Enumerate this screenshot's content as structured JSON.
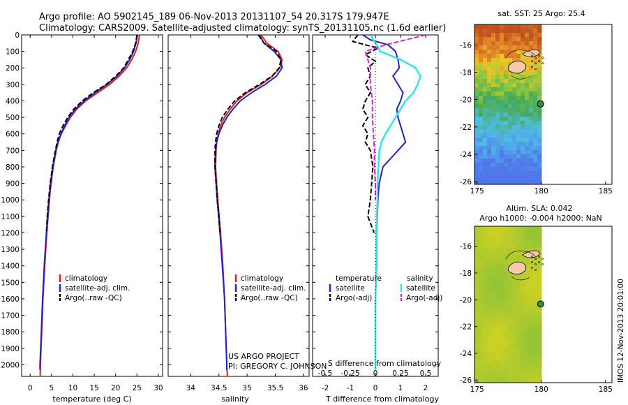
{
  "header": {
    "line1": "Argo profile: AO 5902145_189 06-Nov-2013 20131107_54 20.317S 179.947E",
    "line2": "Climatology: CARS2009. Satellite-adjusted climatology: synTS_20131105.nc (1.6d earlier)"
  },
  "credit": {
    "line1": "US ARGO PROJECT",
    "line2": "PI: GREGORY C. JOHNSON"
  },
  "watermark": "IMOS 12-Nov-2013 20:01:00",
  "colors": {
    "climatology": "#e0201c",
    "satellite": "#1f22c8",
    "argo": "#000000",
    "sal_satellite": "#2ee6e6",
    "sal_argo": "#e020d0",
    "land": "#f5c8a8"
  },
  "chart_data": [
    {
      "type": "line",
      "name": "temperature-profile",
      "xlabel": "temperature (deg C)",
      "ylabel": "",
      "xlim": [
        -2,
        31
      ],
      "ylim": [
        2070,
        0
      ],
      "xticks": [
        "0",
        "5",
        "10",
        "15",
        "20",
        "25",
        "30"
      ],
      "xtick_values": [
        0,
        5,
        10,
        15,
        20,
        25,
        30
      ],
      "yticks": [
        "0",
        "100",
        "200",
        "300",
        "400",
        "500",
        "600",
        "700",
        "800",
        "900",
        "1000",
        "1100",
        "1200",
        "1300",
        "1400",
        "1500",
        "1600",
        "1700",
        "1800",
        "1900",
        "2000"
      ],
      "ytick_values": [
        0,
        100,
        200,
        300,
        400,
        500,
        600,
        700,
        800,
        900,
        1000,
        1100,
        1200,
        1300,
        1400,
        1500,
        1600,
        1700,
        1800,
        1900,
        2000
      ],
      "legend": [
        "climatology",
        "satellite-adj. clim.",
        "Argo(..raw -QC)"
      ],
      "series": [
        {
          "name": "climatology",
          "depth": [
            0,
            50,
            100,
            150,
            200,
            250,
            300,
            350,
            400,
            450,
            500,
            550,
            600,
            650,
            700,
            800,
            900,
            1000,
            1200,
            1400,
            1600,
            1800,
            2000,
            2070
          ],
          "values": [
            25.6,
            25.3,
            24.7,
            23.8,
            22.6,
            20.8,
            18.6,
            15.8,
            13.0,
            10.9,
            9.4,
            8.3,
            7.3,
            6.6,
            6.1,
            5.4,
            4.9,
            4.5,
            3.9,
            3.4,
            3.0,
            2.7,
            2.4,
            2.35
          ]
        },
        {
          "name": "satellite-adj. clim.",
          "depth": [
            0,
            50,
            100,
            150,
            200,
            250,
            300,
            350,
            400,
            450,
            500,
            550,
            600,
            650,
            700,
            800,
            900,
            1000,
            1200,
            1400,
            1600,
            1800,
            2000,
            2030
          ],
          "values": [
            25.1,
            24.8,
            24.2,
            23.3,
            22.1,
            20.3,
            18.0,
            15.2,
            12.6,
            10.6,
            9.1,
            8.1,
            7.2,
            6.5,
            6.0,
            5.3,
            4.8,
            4.4,
            3.8,
            3.3,
            2.9,
            2.6,
            2.3,
            2.3
          ]
        },
        {
          "name": "Argo(..raw -QC)",
          "depth": [
            0,
            50,
            100,
            150,
            200,
            250,
            300,
            350,
            400,
            450,
            500,
            550,
            600,
            650,
            700,
            800,
            900,
            1000,
            1100,
            1200
          ],
          "values": [
            25.0,
            24.7,
            24.0,
            23.0,
            21.9,
            20.0,
            17.8,
            14.8,
            12.2,
            10.2,
            8.8,
            7.7,
            6.8,
            6.3,
            5.9,
            5.2,
            4.7,
            4.3,
            4.0,
            3.8
          ]
        }
      ]
    },
    {
      "type": "line",
      "name": "salinity-profile",
      "xlabel": "salinity",
      "xlim": [
        33.6,
        36.1
      ],
      "ylim": [
        2070,
        0
      ],
      "xticks": [
        "34",
        "34.5",
        "35",
        "35.5",
        "36"
      ],
      "xtick_values": [
        34,
        34.5,
        35,
        35.5,
        36
      ],
      "legend": [
        "climatology",
        "satellite-adj. clim.",
        "Argo(..raw -QC)"
      ],
      "series": [
        {
          "name": "climatology",
          "depth": [
            0,
            50,
            100,
            150,
            200,
            250,
            300,
            350,
            400,
            450,
            500,
            550,
            600,
            650,
            700,
            800,
            900,
            1000,
            1200,
            1400,
            1600,
            1800,
            2000,
            2070
          ],
          "values": [
            35.25,
            35.35,
            35.55,
            35.62,
            35.58,
            35.45,
            35.25,
            35.0,
            34.82,
            34.7,
            34.6,
            34.53,
            34.49,
            34.46,
            34.45,
            34.44,
            34.46,
            34.48,
            34.53,
            34.57,
            34.6,
            34.62,
            34.64,
            34.65
          ]
        },
        {
          "name": "satellite-adj. clim.",
          "depth": [
            0,
            50,
            100,
            150,
            200,
            250,
            300,
            350,
            400,
            450,
            500,
            550,
            600,
            650,
            700,
            800,
            900,
            1000,
            1200,
            1400,
            1600,
            1800,
            2000,
            2030
          ],
          "values": [
            35.22,
            35.3,
            35.48,
            35.6,
            35.62,
            35.52,
            35.32,
            35.08,
            34.88,
            34.75,
            34.64,
            34.56,
            34.5,
            34.46,
            34.44,
            34.43,
            34.45,
            34.47,
            34.52,
            34.56,
            34.6,
            34.62,
            34.64,
            34.64
          ]
        },
        {
          "name": "Argo(..raw -QC)",
          "depth": [
            0,
            50,
            100,
            150,
            200,
            250,
            300,
            350,
            400,
            450,
            500,
            550,
            600,
            650,
            700,
            800,
            900,
            1000,
            1100,
            1200
          ],
          "values": [
            35.2,
            35.3,
            35.52,
            35.6,
            35.57,
            35.44,
            35.22,
            34.97,
            34.78,
            34.66,
            34.56,
            34.5,
            34.46,
            34.44,
            34.43,
            34.43,
            34.45,
            34.47,
            34.5,
            34.52
          ]
        }
      ]
    },
    {
      "type": "line",
      "name": "difference-profile",
      "xlabel": "T difference from climatology",
      "xlabel_top": "S difference from climatology",
      "xlim": [
        -2.5,
        2.5
      ],
      "ylim": [
        2070,
        0
      ],
      "xticks": [
        "-2",
        "-1",
        "0",
        "1",
        "2"
      ],
      "xtick_values": [
        -2,
        -1,
        0,
        1,
        2
      ],
      "sticks": [
        "-0.5",
        "-0.25",
        "0",
        "0.25",
        "0.5"
      ],
      "stick_values": [
        -0.5,
        -0.25,
        0,
        0.25,
        0.5
      ],
      "legend_left_title": "temperature",
      "legend_right_title": "salinity",
      "legend": [
        "satellite",
        "Argo(-adj)",
        "satellite",
        "Argo(-adj)"
      ],
      "series": [
        {
          "name": "temperature satellite",
          "depth": [
            0,
            30,
            60,
            100,
            150,
            200,
            250,
            300,
            350,
            400,
            450,
            500,
            550,
            600,
            650,
            700,
            800,
            900,
            1000,
            1200,
            1400,
            1600,
            1800,
            2000,
            2030
          ],
          "values": [
            -0.5,
            -0.2,
            0.5,
            0.8,
            0.9,
            0.95,
            0.7,
            0.9,
            1.1,
            1.0,
            0.85,
            0.9,
            1.0,
            1.1,
            1.2,
            0.9,
            0.3,
            0.15,
            0.1,
            0.05,
            0.05,
            0.0,
            0.0,
            0.0,
            0.0
          ]
        },
        {
          "name": "temperature Argo(-adj)",
          "depth": [
            0,
            40,
            80,
            120,
            160,
            200,
            250,
            300,
            350,
            400,
            450,
            500,
            550,
            600,
            650,
            700,
            800,
            900,
            1000,
            1100,
            1200
          ],
          "values": [
            -0.7,
            -0.9,
            0.1,
            -0.4,
            0.0,
            -0.3,
            -0.2,
            -0.4,
            -0.2,
            -0.4,
            -0.5,
            -0.3,
            -0.5,
            -0.3,
            -0.4,
            -0.2,
            -0.1,
            -0.15,
            -0.2,
            -0.3,
            -0.05
          ]
        },
        {
          "name": "salinity satellite",
          "depth": [
            0,
            50,
            100,
            150,
            200,
            250,
            300,
            350,
            400,
            450,
            500,
            550,
            600,
            650,
            700,
            800,
            900,
            1000,
            1200,
            1400,
            1600,
            1800,
            2000,
            2030
          ],
          "values": [
            -0.05,
            0.0,
            0.05,
            0.25,
            0.4,
            0.45,
            0.42,
            0.38,
            0.3,
            0.25,
            0.2,
            0.15,
            0.1,
            0.06,
            0.04,
            0.03,
            0.02,
            0.02,
            0.01,
            0.01,
            0.0,
            0.0,
            0.0,
            0.0
          ]
        },
        {
          "name": "salinity Argo(-adj)",
          "depth": [
            0,
            30,
            60,
            100,
            200,
            300,
            400,
            500,
            600,
            700,
            800,
            900,
            1000
          ],
          "values": [
            0.5,
            0.3,
            0.1,
            -0.1,
            -0.05,
            -0.05,
            -0.03,
            -0.03,
            -0.02,
            -0.01,
            -0.01,
            0.0,
            0.0
          ]
        }
      ]
    },
    {
      "type": "heatmap",
      "name": "sst-map",
      "title": "sat. SST: 25 Argo: 25.4",
      "xlim": [
        174.8,
        185.5
      ],
      "ylim": [
        -26.2,
        -14.5
      ],
      "xticks": [
        "175",
        "180",
        "185"
      ],
      "xtick_values": [
        175,
        180,
        185
      ],
      "yticks": [
        "-16",
        "-18",
        "-20",
        "-22",
        "-24",
        "-26"
      ],
      "ytick_values": [
        -16,
        -18,
        -20,
        -22,
        -24,
        -26
      ],
      "argo_position": {
        "lon": 179.947,
        "lat": -20.317
      }
    },
    {
      "type": "heatmap",
      "name": "sla-map",
      "title_line1": "Altim. SLA: 0.042",
      "title_line2": "Argo h1000: -0.004 h2000: NaN",
      "xlim": [
        174.8,
        185.5
      ],
      "ylim": [
        -26.2,
        -14.5
      ],
      "xticks": [
        "175",
        "180",
        "185"
      ],
      "xtick_values": [
        175,
        180,
        185
      ],
      "yticks": [
        "-16",
        "-18",
        "-20",
        "-22",
        "-24",
        "-26"
      ],
      "ytick_values": [
        -16,
        -18,
        -20,
        -22,
        -24,
        -26
      ],
      "argo_position": {
        "lon": 179.947,
        "lat": -20.317
      }
    }
  ]
}
